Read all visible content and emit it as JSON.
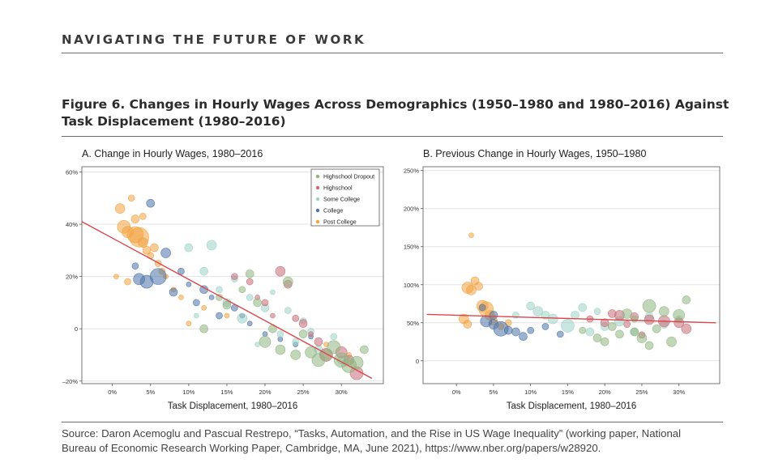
{
  "header": {
    "text": "NAVIGATING THE FUTURE OF WORK"
  },
  "figure": {
    "title_line1": "Figure 6. Changes in Hourly Wages Across Demographics (1950–1980 and 1980–2016) Against",
    "title_line2": "Task Displacement (1980–2016)"
  },
  "colors": {
    "Highschool Dropout": "#8fb57f",
    "Highschool": "#c76d7a",
    "Some College": "#9ed2c6",
    "College": "#4d73a8",
    "Post College": "#f2a340",
    "fit_line": "#d9474c"
  },
  "chart_data": [
    {
      "type": "scatter",
      "title": "A. Change in Hourly Wages, 1980–2016",
      "xlabel": "Task Displacement, 1980–2016",
      "ylabel": "",
      "xlim": [
        -0.04,
        0.355
      ],
      "ylim": [
        -0.21,
        0.62
      ],
      "xticks": [
        0,
        0.05,
        0.1,
        0.15,
        0.2,
        0.25,
        0.3
      ],
      "xtick_labels": [
        "0%",
        "5%",
        "10%",
        "15%",
        "20%",
        "25%",
        "30%"
      ],
      "yticks": [
        -0.2,
        0,
        0.2,
        0.4,
        0.6
      ],
      "ytick_labels": [
        "–20%",
        "0",
        "20%",
        "40%",
        "60%"
      ],
      "grid": true,
      "legend": {
        "position": "top-right",
        "entries": [
          "Highschool Dropout",
          "Highschool",
          "Some College",
          "College",
          "Post College"
        ]
      },
      "fit_line": {
        "x": [
          -0.04,
          0.34
        ],
        "y": [
          0.41,
          -0.19
        ]
      },
      "series": [
        {
          "name": "Post College",
          "x": [
            0.01,
            0.015,
            0.02,
            0.03,
            0.03,
            0.035,
            0.025,
            0.04,
            0.045,
            0.05,
            0.055,
            0.06,
            0.005,
            0.065,
            0.07,
            0.08,
            0.09,
            0.12,
            0.15,
            0.02,
            0.04,
            0.28,
            0.31,
            0.1
          ],
          "y": [
            0.46,
            0.39,
            0.37,
            0.36,
            0.42,
            0.35,
            0.5,
            0.33,
            0.3,
            0.28,
            0.31,
            0.25,
            0.2,
            0.22,
            0.2,
            0.15,
            0.12,
            0.08,
            0.05,
            0.18,
            0.43,
            -0.06,
            -0.1,
            0.02
          ],
          "size": [
            6,
            8,
            7,
            10,
            5,
            12,
            4,
            6,
            5,
            4,
            5,
            4,
            3,
            4,
            3,
            3,
            3,
            3,
            3,
            4,
            4,
            3,
            3,
            3
          ]
        },
        {
          "name": "College",
          "x": [
            0.035,
            0.045,
            0.06,
            0.07,
            0.08,
            0.05,
            0.09,
            0.11,
            0.12,
            0.14,
            0.16,
            0.18,
            0.2,
            0.22,
            0.24,
            0.03,
            0.1,
            0.13,
            0.17,
            0.26
          ],
          "y": [
            0.19,
            0.18,
            0.2,
            0.29,
            0.14,
            0.48,
            0.22,
            0.1,
            0.15,
            0.05,
            0.08,
            0.02,
            -0.02,
            -0.04,
            -0.06,
            0.24,
            0.17,
            0.12,
            0.05,
            -0.03
          ],
          "size": [
            7,
            8,
            10,
            6,
            5,
            5,
            4,
            4,
            5,
            4,
            4,
            3,
            3,
            3,
            3,
            4,
            3,
            3,
            3,
            3
          ]
        },
        {
          "name": "Some College",
          "x": [
            0.1,
            0.12,
            0.13,
            0.15,
            0.17,
            0.18,
            0.2,
            0.22,
            0.24,
            0.25,
            0.27,
            0.29,
            0.3,
            0.14,
            0.16,
            0.21,
            0.23,
            0.26,
            0.11,
            0.19
          ],
          "y": [
            0.31,
            0.22,
            0.32,
            0.1,
            0.04,
            0.12,
            0.08,
            -0.02,
            -0.05,
            0.03,
            -0.08,
            -0.03,
            -0.12,
            0.15,
            0.19,
            0.14,
            0.07,
            -0.01,
            0.05,
            -0.06
          ],
          "size": [
            5,
            5,
            6,
            5,
            6,
            4,
            5,
            4,
            4,
            4,
            5,
            4,
            5,
            4,
            4,
            3,
            4,
            4,
            3,
            3
          ]
        },
        {
          "name": "Highschool",
          "x": [
            0.16,
            0.18,
            0.2,
            0.22,
            0.23,
            0.24,
            0.25,
            0.27,
            0.28,
            0.3,
            0.31,
            0.32,
            0.19,
            0.21,
            0.26
          ],
          "y": [
            0.2,
            0.18,
            0.1,
            0.22,
            0.17,
            0.04,
            0.02,
            -0.05,
            -0.1,
            -0.09,
            -0.12,
            -0.17,
            0.12,
            0.05,
            -0.02
          ],
          "size": [
            4,
            4,
            4,
            6,
            5,
            4,
            5,
            5,
            8,
            7,
            6,
            8,
            3,
            3,
            3
          ]
        },
        {
          "name": "Highschool Dropout",
          "x": [
            0.15,
            0.18,
            0.19,
            0.2,
            0.21,
            0.22,
            0.23,
            0.24,
            0.25,
            0.26,
            0.27,
            0.28,
            0.29,
            0.3,
            0.31,
            0.32,
            0.17,
            0.14,
            0.12,
            0.33
          ],
          "y": [
            0.09,
            0.21,
            0.1,
            -0.05,
            0.0,
            -0.08,
            0.18,
            -0.1,
            -0.02,
            -0.09,
            -0.12,
            -0.1,
            -0.07,
            -0.12,
            -0.14,
            -0.13,
            0.15,
            0.12,
            0.0,
            -0.08
          ],
          "size": [
            5,
            5,
            5,
            7,
            5,
            6,
            6,
            6,
            5,
            7,
            8,
            7,
            8,
            9,
            9,
            8,
            4,
            4,
            5,
            5
          ]
        }
      ]
    },
    {
      "type": "scatter",
      "title": "B. Previous Change in Hourly Wages, 1950–1980",
      "xlabel": "Task Displacement, 1980–2016",
      "ylabel": "",
      "xlim": [
        -0.045,
        0.355
      ],
      "ylim": [
        -0.3,
        2.55
      ],
      "xticks": [
        0,
        0.05,
        0.1,
        0.15,
        0.2,
        0.25,
        0.3
      ],
      "xtick_labels": [
        "0%",
        "5%",
        "10%",
        "15%",
        "20%",
        "25%",
        "30%"
      ],
      "yticks": [
        0,
        0.5,
        1.0,
        1.5,
        2.0,
        2.5
      ],
      "ytick_labels": [
        "0",
        "50%",
        "100%",
        "150%",
        "200%",
        "250%"
      ],
      "grid": true,
      "legend": null,
      "fit_line": {
        "x": [
          -0.04,
          0.35
        ],
        "y": [
          0.61,
          0.5
        ]
      },
      "series": [
        {
          "name": "Post College",
          "x": [
            0.015,
            0.02,
            0.025,
            0.03,
            0.035,
            0.04,
            0.045,
            0.05,
            0.01,
            0.02,
            0.06,
            0.07,
            0.015
          ],
          "y": [
            0.96,
            0.93,
            1.05,
            0.98,
            0.72,
            0.68,
            0.6,
            0.52,
            0.55,
            1.65,
            0.45,
            0.5,
            0.48
          ],
          "size": [
            7,
            6,
            5,
            5,
            7,
            9,
            6,
            5,
            6,
            3,
            4,
            4,
            5
          ]
        },
        {
          "name": "College",
          "x": [
            0.04,
            0.05,
            0.06,
            0.07,
            0.08,
            0.09,
            0.1,
            0.12,
            0.14,
            0.05,
            0.035
          ],
          "y": [
            0.52,
            0.48,
            0.42,
            0.4,
            0.38,
            0.32,
            0.4,
            0.45,
            0.35,
            0.6,
            0.7
          ],
          "size": [
            7,
            6,
            9,
            5,
            5,
            5,
            4,
            4,
            4,
            5,
            4
          ]
        },
        {
          "name": "Some College",
          "x": [
            0.1,
            0.11,
            0.12,
            0.13,
            0.15,
            0.16,
            0.17,
            0.2,
            0.22,
            0.24,
            0.26,
            0.28,
            0.3,
            0.18,
            0.08,
            0.19
          ],
          "y": [
            0.72,
            0.65,
            0.6,
            0.55,
            0.46,
            0.6,
            0.7,
            0.45,
            0.52,
            0.38,
            0.58,
            0.48,
            0.55,
            0.38,
            0.6,
            0.65
          ],
          "size": [
            5,
            6,
            5,
            6,
            8,
            5,
            5,
            5,
            6,
            5,
            5,
            5,
            4,
            5,
            4,
            4
          ]
        },
        {
          "name": "Highschool",
          "x": [
            0.18,
            0.2,
            0.21,
            0.22,
            0.24,
            0.26,
            0.28,
            0.3,
            0.31,
            0.23,
            0.25
          ],
          "y": [
            0.55,
            0.5,
            0.62,
            0.6,
            0.58,
            0.54,
            0.52,
            0.5,
            0.42,
            0.48,
            0.34
          ],
          "size": [
            4,
            5,
            5,
            6,
            5,
            6,
            7,
            6,
            6,
            4,
            4
          ]
        },
        {
          "name": "Highschool Dropout",
          "x": [
            0.2,
            0.21,
            0.22,
            0.23,
            0.24,
            0.25,
            0.26,
            0.27,
            0.28,
            0.29,
            0.3,
            0.31,
            0.19,
            0.17,
            0.24,
            0.26
          ],
          "y": [
            0.25,
            0.45,
            0.35,
            0.62,
            0.38,
            0.3,
            0.72,
            0.42,
            0.65,
            0.25,
            0.6,
            0.8,
            0.3,
            0.4,
            0.55,
            0.2
          ],
          "size": [
            5,
            5,
            5,
            6,
            5,
            6,
            8,
            5,
            6,
            6,
            7,
            5,
            5,
            4,
            4,
            5
          ]
        }
      ]
    }
  ],
  "source": {
    "line1": "Source: Daron Acemoglu and Pascual Restrepo, “Tasks, Automation, and the Rise in US Wage Inequality” (working paper, National",
    "line2": "Bureau of Economic Research Working Paper, Cambridge, MA, June 2021), https://www.nber.org/papers/w28920."
  }
}
